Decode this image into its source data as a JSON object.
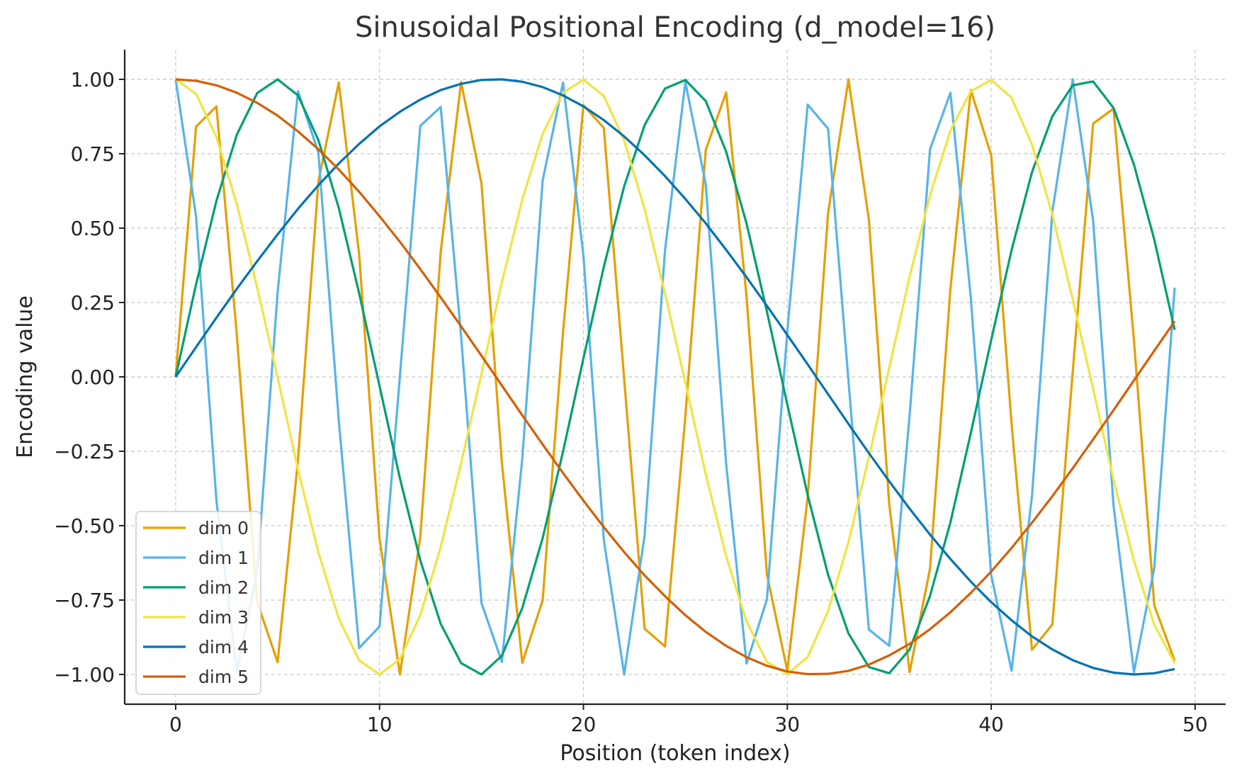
{
  "chart_data": {
    "type": "line",
    "title": "Sinusoidal Positional Encoding (d_model=16)",
    "xlabel": "Position (token index)",
    "ylabel": "Encoding value",
    "xlim": [
      -2.5,
      51.5
    ],
    "ylim": [
      -1.1,
      1.1
    ],
    "x": [
      0,
      1,
      2,
      3,
      4,
      5,
      6,
      7,
      8,
      9,
      10,
      11,
      12,
      13,
      14,
      15,
      16,
      17,
      18,
      19,
      20,
      21,
      22,
      23,
      24,
      25,
      26,
      27,
      28,
      29,
      30,
      31,
      32,
      33,
      34,
      35,
      36,
      37,
      38,
      39,
      40,
      41,
      42,
      43,
      44,
      45,
      46,
      47,
      48,
      49
    ],
    "x_ticks": [
      0,
      10,
      20,
      30,
      40,
      50
    ],
    "x_tick_labels": [
      "0",
      "10",
      "20",
      "30",
      "40",
      "50"
    ],
    "y_ticks": [
      1.0,
      0.75,
      0.5,
      0.25,
      0.0,
      -0.25,
      -0.5,
      -0.75,
      -1.0
    ],
    "y_tick_labels": [
      "1.00",
      "0.75",
      "0.50",
      "0.25",
      "0.00",
      "−0.25",
      "−0.50",
      "−0.75",
      "−1.00"
    ],
    "grid": true,
    "legend_position": "bottom-left",
    "series": [
      {
        "name": "dim 0",
        "color": "#E69F00",
        "values": [
          0.0,
          0.841,
          0.909,
          0.141,
          -0.757,
          -0.959,
          -0.279,
          0.657,
          0.989,
          0.412,
          -0.544,
          -1.0,
          -0.537,
          0.42,
          0.991,
          0.65,
          -0.288,
          -0.961,
          -0.751,
          0.15,
          0.913,
          0.837,
          -0.009,
          -0.846,
          -0.906,
          -0.132,
          0.763,
          0.956,
          0.271,
          -0.664,
          -0.988,
          -0.404,
          0.551,
          1.0,
          0.529,
          -0.428,
          -0.992,
          -0.644,
          0.296,
          0.964,
          0.745,
          -0.159,
          -0.917,
          -0.832,
          0.018,
          0.851,
          0.902,
          0.124,
          -0.768,
          -0.954
        ]
      },
      {
        "name": "dim 1",
        "color": "#56B4E9",
        "values": [
          1.0,
          0.54,
          -0.416,
          -0.99,
          -0.654,
          0.284,
          0.96,
          0.754,
          -0.146,
          -0.911,
          -0.839,
          0.004,
          0.844,
          0.907,
          0.137,
          -0.76,
          -0.958,
          -0.275,
          0.66,
          0.989,
          0.408,
          -0.548,
          -1.0,
          -0.533,
          0.424,
          0.991,
          0.647,
          -0.292,
          -0.963,
          -0.748,
          0.154,
          0.915,
          0.834,
          -0.013,
          -0.849,
          -0.904,
          -0.128,
          0.765,
          0.955,
          0.267,
          -0.667,
          -0.987,
          -0.4,
          0.555,
          1.0,
          0.525,
          -0.432,
          -0.992,
          -0.641,
          0.3
        ]
      },
      {
        "name": "dim 2",
        "color": "#009E73",
        "values": [
          0.0,
          0.311,
          0.592,
          0.814,
          0.954,
          1.0,
          0.946,
          0.796,
          0.568,
          0.281,
          -0.031,
          -0.341,
          -0.617,
          -0.83,
          -0.962,
          -1.0,
          -0.937,
          -0.777,
          -0.542,
          -0.251,
          0.062,
          0.37,
          0.641,
          0.846,
          0.969,
          0.998,
          0.927,
          0.757,
          0.516,
          0.22,
          -0.093,
          -0.398,
          -0.665,
          -0.862,
          -0.975,
          -0.996,
          -0.916,
          -0.736,
          -0.489,
          -0.189,
          0.124,
          0.426,
          0.688,
          0.876,
          0.98,
          0.993,
          0.904,
          0.714,
          0.461,
          0.158
        ]
      },
      {
        "name": "dim 3",
        "color": "#F0E442",
        "values": [
          1.0,
          0.951,
          0.806,
          0.581,
          0.3,
          -0.001,
          -0.311,
          -0.59,
          -0.812,
          -0.953,
          -1.0,
          -0.948,
          -0.8,
          -0.572,
          -0.29,
          0.01,
          0.318,
          0.596,
          0.817,
          0.955,
          0.999,
          0.944,
          0.794,
          0.564,
          0.28,
          -0.02,
          -0.327,
          -0.603,
          -0.822,
          -0.958,
          -0.999,
          -0.941,
          -0.787,
          -0.555,
          -0.27,
          0.03,
          0.337,
          0.61,
          0.828,
          0.96,
          0.998,
          0.938,
          0.781,
          0.546,
          0.26,
          -0.04,
          -0.346,
          -0.617,
          -0.833,
          -0.962
        ]
      },
      {
        "name": "dim 4",
        "color": "#0072B2",
        "values": [
          0.0,
          0.1,
          0.199,
          0.296,
          0.389,
          0.479,
          0.565,
          0.644,
          0.717,
          0.783,
          0.842,
          0.891,
          0.932,
          0.964,
          0.985,
          0.998,
          1.0,
          0.992,
          0.974,
          0.946,
          0.909,
          0.863,
          0.808,
          0.745,
          0.675,
          0.598,
          0.516,
          0.427,
          0.335,
          0.239,
          0.141,
          0.042,
          -0.058,
          -0.158,
          -0.256,
          -0.351,
          -0.443,
          -0.53,
          -0.612,
          -0.688,
          -0.757,
          -0.818,
          -0.872,
          -0.916,
          -0.952,
          -0.978,
          -0.994,
          -1.0,
          -0.996,
          -0.982
        ]
      },
      {
        "name": "dim 5",
        "color": "#D55E00",
        "values": [
          1.0,
          0.995,
          0.98,
          0.955,
          0.921,
          0.878,
          0.825,
          0.765,
          0.697,
          0.622,
          0.54,
          0.454,
          0.362,
          0.267,
          0.17,
          0.071,
          -0.029,
          -0.129,
          -0.227,
          -0.323,
          -0.416,
          -0.505,
          -0.589,
          -0.667,
          -0.737,
          -0.801,
          -0.857,
          -0.904,
          -0.942,
          -0.971,
          -0.99,
          -0.999,
          -0.998,
          -0.988,
          -0.967,
          -0.936,
          -0.897,
          -0.848,
          -0.791,
          -0.726,
          -0.654,
          -0.575,
          -0.49,
          -0.401,
          -0.307,
          -0.21,
          -0.112,
          -0.012,
          0.088,
          0.187
        ]
      }
    ]
  }
}
